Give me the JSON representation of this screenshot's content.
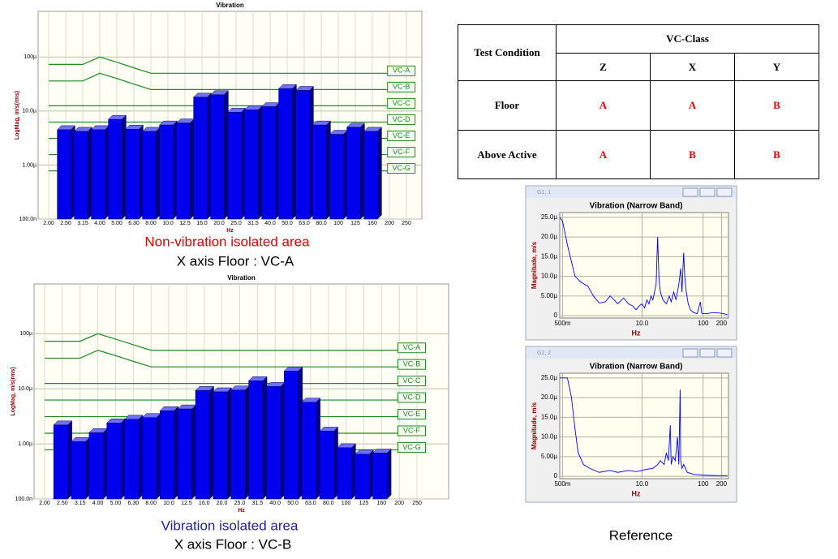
{
  "chart_data": [
    {
      "type": "bar",
      "title": "Vibration",
      "x_label": "Hz",
      "y_label": "LogMag, m/s(rms)",
      "y_log": true,
      "grid": true,
      "color": "#0000ee",
      "categories": [
        "2.00",
        "2.50",
        "3.15",
        "4.00",
        "5.00",
        "6.30",
        "8.00",
        "10.0",
        "12.5",
        "16.0",
        "20.0",
        "25.0",
        "31.5",
        "40.0",
        "50.0",
        "63.0",
        "80.0",
        "100",
        "125",
        "160",
        "200",
        "250"
      ],
      "values": [
        null,
        4.5e-06,
        4.2e-06,
        4.5e-06,
        7e-06,
        4.6e-06,
        4.2e-06,
        5.5e-06,
        6e-06,
        1.8e-05,
        2e-05,
        9.5e-06,
        1.05e-05,
        1.2e-05,
        2.6e-05,
        2.4e-05,
        5.5e-06,
        3.7e-06,
        5e-06,
        4.2e-06,
        null,
        null
      ],
      "ylim": [
        1e-07,
        0.0007
      ],
      "yticks": [
        {
          "value": 1e-07,
          "label": "100.0n"
        },
        {
          "value": 1e-06,
          "label": "1.00µ"
        },
        {
          "value": 1e-05,
          "label": "10.0µ"
        },
        {
          "value": 0.0001,
          "label": "100µ"
        }
      ],
      "series": [
        {
          "name": "VC-A",
          "color": "#1e8c1e",
          "values": [
            7.3e-05,
            7.3e-05,
            7.3e-05,
            0.0001,
            8e-05,
            6.3e-05,
            5e-05,
            5e-05,
            5e-05,
            5e-05,
            5e-05,
            5e-05,
            5e-05,
            5e-05,
            5e-05,
            5e-05,
            5e-05,
            5e-05,
            5e-05,
            5e-05,
            5e-05,
            5e-05
          ]
        },
        {
          "name": "VC-B",
          "color": "#1e8c1e",
          "values": [
            3.6e-05,
            3.6e-05,
            3.6e-05,
            5e-05,
            4e-05,
            3.15e-05,
            2.5e-05,
            2.5e-05,
            2.5e-05,
            2.5e-05,
            2.5e-05,
            2.5e-05,
            2.5e-05,
            2.5e-05,
            2.5e-05,
            2.5e-05,
            2.5e-05,
            2.5e-05,
            2.5e-05,
            2.5e-05,
            2.5e-05,
            2.5e-05
          ]
        },
        {
          "name": "VC-C",
          "color": "#1e8c1e",
          "values": [
            1.25e-05,
            1.25e-05,
            1.25e-05,
            1.25e-05,
            1.25e-05,
            1.25e-05,
            1.25e-05,
            1.25e-05,
            1.25e-05,
            1.25e-05,
            1.25e-05,
            1.25e-05,
            1.25e-05,
            1.25e-05,
            1.25e-05,
            1.25e-05,
            1.25e-05,
            1.25e-05,
            1.25e-05,
            1.25e-05,
            1.25e-05,
            1.25e-05
          ]
        },
        {
          "name": "VC-D",
          "color": "#1e8c1e",
          "values": [
            6.25e-06,
            6.25e-06,
            6.25e-06,
            6.25e-06,
            6.25e-06,
            6.25e-06,
            6.25e-06,
            6.25e-06,
            6.25e-06,
            6.25e-06,
            6.25e-06,
            6.25e-06,
            6.25e-06,
            6.25e-06,
            6.25e-06,
            6.25e-06,
            6.25e-06,
            6.25e-06,
            6.25e-06,
            6.25e-06,
            6.25e-06,
            6.25e-06
          ]
        },
        {
          "name": "VC-E",
          "color": "#1e8c1e",
          "values": [
            3.12e-06,
            3.12e-06,
            3.12e-06,
            3.12e-06,
            3.12e-06,
            3.12e-06,
            3.12e-06,
            3.12e-06,
            3.12e-06,
            3.12e-06,
            3.12e-06,
            3.12e-06,
            3.12e-06,
            3.12e-06,
            3.12e-06,
            3.12e-06,
            3.12e-06,
            3.12e-06,
            3.12e-06,
            3.12e-06,
            3.12e-06,
            3.12e-06
          ]
        },
        {
          "name": "VC-F",
          "color": "#1e8c1e",
          "values": [
            1.56e-06,
            1.56e-06,
            1.56e-06,
            1.56e-06,
            1.56e-06,
            1.56e-06,
            1.56e-06,
            1.56e-06,
            1.56e-06,
            1.56e-06,
            1.56e-06,
            1.56e-06,
            1.56e-06,
            1.56e-06,
            1.56e-06,
            1.56e-06,
            1.56e-06,
            1.56e-06,
            1.56e-06,
            1.56e-06,
            1.56e-06,
            1.56e-06
          ]
        },
        {
          "name": "VC-G",
          "color": "#1e8c1e",
          "values": [
            7.8e-07,
            7.8e-07,
            7.8e-07,
            7.8e-07,
            7.8e-07,
            7.8e-07,
            7.8e-07,
            7.8e-07,
            7.8e-07,
            7.8e-07,
            7.8e-07,
            7.8e-07,
            7.8e-07,
            7.8e-07,
            7.8e-07,
            7.8e-07,
            7.8e-07,
            7.8e-07,
            7.8e-07,
            7.8e-07,
            7.8e-07,
            7.8e-07
          ]
        }
      ]
    },
    {
      "type": "bar",
      "title": "Vibration",
      "x_label": "Hz",
      "y_label": "LogMag, m/s(rms)",
      "y_log": true,
      "grid": true,
      "color": "#0000ee",
      "categories": [
        "2.00",
        "2.50",
        "3.15",
        "4.00",
        "5.00",
        "6.30",
        "8.00",
        "10.0",
        "12.5",
        "16.0",
        "20.0",
        "25.0",
        "31.5",
        "40.0",
        "50.0",
        "63.0",
        "80.0",
        "100",
        "125",
        "160",
        "200",
        "250"
      ],
      "values": [
        null,
        2.2e-06,
        1.1e-06,
        1.6e-06,
        2.4e-06,
        2.8e-06,
        3e-06,
        4e-06,
        4.3e-06,
        9.3e-06,
        8.8e-06,
        9.5e-06,
        1.4e-05,
        1.1e-05,
        2.1e-05,
        5.7e-06,
        1.7e-06,
        8.5e-07,
        6.5e-07,
        6.8e-07,
        null,
        null
      ],
      "ylim": [
        1e-07,
        0.0008
      ],
      "yticks": [
        {
          "value": 1e-07,
          "label": "100.0n"
        },
        {
          "value": 1e-06,
          "label": "1.00µ"
        },
        {
          "value": 1e-05,
          "label": "10.0µ"
        },
        {
          "value": 0.0001,
          "label": "100µ"
        }
      ],
      "series": [
        {
          "name": "VC-A",
          "color": "#1e8c1e",
          "values": [
            7.3e-05,
            7.3e-05,
            7.3e-05,
            0.0001,
            8e-05,
            6.3e-05,
            5e-05,
            5e-05,
            5e-05,
            5e-05,
            5e-05,
            5e-05,
            5e-05,
            5e-05,
            5e-05,
            5e-05,
            5e-05,
            5e-05,
            5e-05,
            5e-05,
            5e-05,
            5e-05
          ]
        },
        {
          "name": "VC-B",
          "color": "#1e8c1e",
          "values": [
            3.6e-05,
            3.6e-05,
            3.6e-05,
            5e-05,
            4e-05,
            3.15e-05,
            2.5e-05,
            2.5e-05,
            2.5e-05,
            2.5e-05,
            2.5e-05,
            2.5e-05,
            2.5e-05,
            2.5e-05,
            2.5e-05,
            2.5e-05,
            2.5e-05,
            2.5e-05,
            2.5e-05,
            2.5e-05,
            2.5e-05,
            2.5e-05
          ]
        },
        {
          "name": "VC-C",
          "color": "#1e8c1e",
          "values": [
            1.25e-05,
            1.25e-05,
            1.25e-05,
            1.25e-05,
            1.25e-05,
            1.25e-05,
            1.25e-05,
            1.25e-05,
            1.25e-05,
            1.25e-05,
            1.25e-05,
            1.25e-05,
            1.25e-05,
            1.25e-05,
            1.25e-05,
            1.25e-05,
            1.25e-05,
            1.25e-05,
            1.25e-05,
            1.25e-05,
            1.25e-05,
            1.25e-05
          ]
        },
        {
          "name": "VC-D",
          "color": "#1e8c1e",
          "values": [
            6.25e-06,
            6.25e-06,
            6.25e-06,
            6.25e-06,
            6.25e-06,
            6.25e-06,
            6.25e-06,
            6.25e-06,
            6.25e-06,
            6.25e-06,
            6.25e-06,
            6.25e-06,
            6.25e-06,
            6.25e-06,
            6.25e-06,
            6.25e-06,
            6.25e-06,
            6.25e-06,
            6.25e-06,
            6.25e-06,
            6.25e-06,
            6.25e-06
          ]
        },
        {
          "name": "VC-E",
          "color": "#1e8c1e",
          "values": [
            3.12e-06,
            3.12e-06,
            3.12e-06,
            3.12e-06,
            3.12e-06,
            3.12e-06,
            3.12e-06,
            3.12e-06,
            3.12e-06,
            3.12e-06,
            3.12e-06,
            3.12e-06,
            3.12e-06,
            3.12e-06,
            3.12e-06,
            3.12e-06,
            3.12e-06,
            3.12e-06,
            3.12e-06,
            3.12e-06,
            3.12e-06,
            3.12e-06
          ]
        },
        {
          "name": "VC-F",
          "color": "#1e8c1e",
          "values": [
            1.56e-06,
            1.56e-06,
            1.56e-06,
            1.56e-06,
            1.56e-06,
            1.56e-06,
            1.56e-06,
            1.56e-06,
            1.56e-06,
            1.56e-06,
            1.56e-06,
            1.56e-06,
            1.56e-06,
            1.56e-06,
            1.56e-06,
            1.56e-06,
            1.56e-06,
            1.56e-06,
            1.56e-06,
            1.56e-06,
            1.56e-06,
            1.56e-06
          ]
        },
        {
          "name": "VC-G",
          "color": "#1e8c1e",
          "values": [
            7.8e-07,
            7.8e-07,
            7.8e-07,
            7.8e-07,
            7.8e-07,
            7.8e-07,
            7.8e-07,
            7.8e-07,
            7.8e-07,
            7.8e-07,
            7.8e-07,
            7.8e-07,
            7.8e-07,
            7.8e-07,
            7.8e-07,
            7.8e-07,
            7.8e-07,
            7.8e-07,
            7.8e-07,
            7.8e-07,
            7.8e-07,
            7.8e-07
          ]
        }
      ]
    },
    {
      "type": "line",
      "window_title": "G1, 1",
      "title": "Vibration (Narrow Band)",
      "x_label": "Hz",
      "y_label": "Magnitude, m/s",
      "x_log": true,
      "grid": true,
      "xlim": [
        0.45,
        260
      ],
      "xticks": [
        {
          "value": 0.5,
          "label": "500m"
        },
        {
          "value": 10,
          "label": "10.0"
        },
        100,
        200
      ],
      "ylim": [
        -6e-07,
        2.62e-05
      ],
      "yticks": [
        0,
        {
          "value": 5e-06,
          "label": "5.00µ"
        },
        {
          "value": 1e-05,
          "label": "10.0µ"
        },
        {
          "value": 1.5e-05,
          "label": "15.0µ"
        },
        {
          "value": 2e-05,
          "label": "20.0µ"
        },
        {
          "value": 2.5e-05,
          "label": "25.0µ"
        }
      ],
      "series": [
        {
          "color": "#0000ff",
          "x": [
            0.45,
            0.5,
            0.6,
            0.8,
            1.0,
            1.3,
            1.6,
            2,
            2.5,
            3,
            3.5,
            4,
            5,
            6,
            7,
            8,
            9,
            10,
            11,
            12,
            13,
            14,
            15,
            16,
            17,
            18,
            19,
            20,
            22,
            25,
            28,
            30,
            33,
            36,
            40,
            43,
            45,
            48,
            50,
            53,
            57,
            62,
            70,
            80,
            90,
            95,
            110,
            150,
            200,
            250
          ],
          "values": [
            2.5e-05,
            2.4e-05,
            1.8e-05,
            1e-05,
            8.5e-06,
            7.5e-06,
            5e-06,
            3.2e-06,
            3.5e-06,
            5e-06,
            4e-06,
            3e-06,
            4.5e-06,
            3e-06,
            2.5e-06,
            1.5e-06,
            2.5e-06,
            3e-06,
            2e-06,
            4e-06,
            3e-06,
            5e-06,
            4e-06,
            6e-06,
            8e-06,
            2e-05,
            9e-06,
            6e-06,
            4e-06,
            3e-06,
            5e-06,
            3.5e-06,
            6e-06,
            4e-06,
            8e-06,
            1.2e-05,
            6e-06,
            1.6e-05,
            1e-05,
            6e-06,
            3e-06,
            1.5e-06,
            8e-07,
            5e-07,
            3.5e-06,
            6e-07,
            5e-07,
            8e-07,
            6e-07,
            3e-07
          ]
        }
      ]
    },
    {
      "type": "line",
      "window_title": "G2, 2",
      "title": "Vibration (Narrow Band)",
      "x_label": "Hz",
      "y_label": "Magnitude, m/s",
      "x_log": true,
      "grid": true,
      "xlim": [
        0.45,
        260
      ],
      "xticks": [
        {
          "value": 0.5,
          "label": "500m"
        },
        {
          "value": 10,
          "label": "10.0"
        },
        100,
        200
      ],
      "ylim": [
        -6e-07,
        2.62e-05
      ],
      "yticks": [
        0,
        {
          "value": 5e-06,
          "label": "5.00µ"
        },
        {
          "value": 1e-05,
          "label": "10.0µ"
        },
        {
          "value": 1.5e-05,
          "label": "15.0µ"
        },
        {
          "value": 2e-05,
          "label": "20.0µ"
        },
        {
          "value": 2.5e-05,
          "label": "25.0µ"
        }
      ],
      "series": [
        {
          "color": "#0000ff",
          "x": [
            0.45,
            0.6,
            0.7,
            0.8,
            0.9,
            1.1,
            1.4,
            2,
            3,
            4,
            6,
            8,
            10,
            12,
            15,
            18,
            20,
            23,
            25,
            27,
            29,
            30,
            32,
            35,
            38,
            40,
            42,
            43,
            45,
            48,
            55,
            70,
            100,
            150,
            250
          ],
          "values": [
            2.5e-05,
            2.5e-05,
            2e-05,
            1.2e-05,
            6e-06,
            3e-06,
            2e-06,
            1e-06,
            1.5e-06,
            1e-06,
            1.5e-06,
            1.2e-06,
            1.5e-06,
            1.8e-06,
            2e-06,
            3e-06,
            4e-06,
            3e-06,
            6e-06,
            4e-06,
            1.3e-05,
            3e-06,
            5e-06,
            4e-06,
            1e-05,
            3e-06,
            2.2e-05,
            4e-06,
            2e-06,
            3e-06,
            1e-06,
            5e-07,
            3e-07,
            2e-07,
            1e-07
          ]
        }
      ]
    }
  ],
  "captions": {
    "top_area": "Non-vibration isolated area",
    "top_floor": "X axis Floor : VC-A",
    "bottom_area": "Vibration isolated area",
    "bottom_floor": "X axis Floor : VC-B",
    "reference": "Reference"
  },
  "table": {
    "header": {
      "condition": "Test Condition",
      "group": "VC-Class",
      "columns": [
        "Z",
        "X",
        "Y"
      ]
    },
    "rows": [
      [
        "Floor",
        "A",
        "A",
        "B"
      ],
      [
        "Above Active",
        "A",
        "B",
        "B"
      ]
    ]
  }
}
